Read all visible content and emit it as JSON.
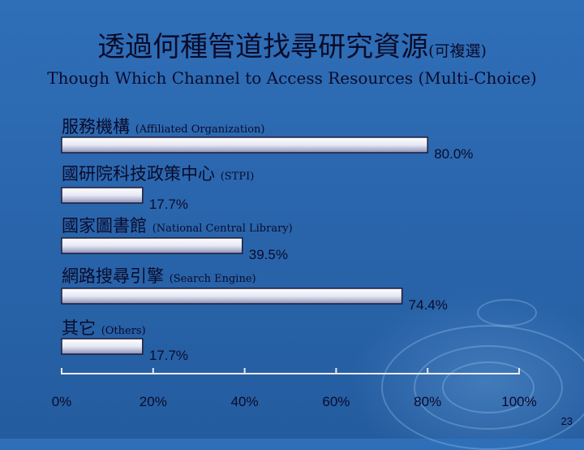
{
  "title_zh": "透過何種管道找尋研究資源",
  "title_note": "(可複選)",
  "subtitle": "Though Which Channel to Access Resources (Multi-Choice)",
  "page_number": "23",
  "chart_data": {
    "type": "bar",
    "orientation": "horizontal",
    "title": "透過何種管道找尋研究資源(可複選)",
    "subtitle": "Though Which Channel to Access Resources (Multi-Choice)",
    "categories": [
      {
        "zh": "服務機構",
        "en": "(Affiliated Organization)"
      },
      {
        "zh": "國研院科技政策中心",
        "en": "(STPI)"
      },
      {
        "zh": "國家圖書館",
        "en": "(National Central Library)"
      },
      {
        "zh": "網路搜尋引擎",
        "en": "(Search Engine)"
      },
      {
        "zh": "其它",
        "en": "(Others)"
      }
    ],
    "values": [
      80.0,
      17.7,
      39.5,
      74.4,
      17.7
    ],
    "value_labels": [
      "80.0%",
      "17.7%",
      "39.5%",
      "74.4%",
      "17.7%"
    ],
    "xlim": [
      0,
      100
    ],
    "x_ticks": [
      "0%",
      "20%",
      "40%",
      "60%",
      "80%",
      "100%"
    ],
    "grid": false,
    "legend": "none"
  }
}
